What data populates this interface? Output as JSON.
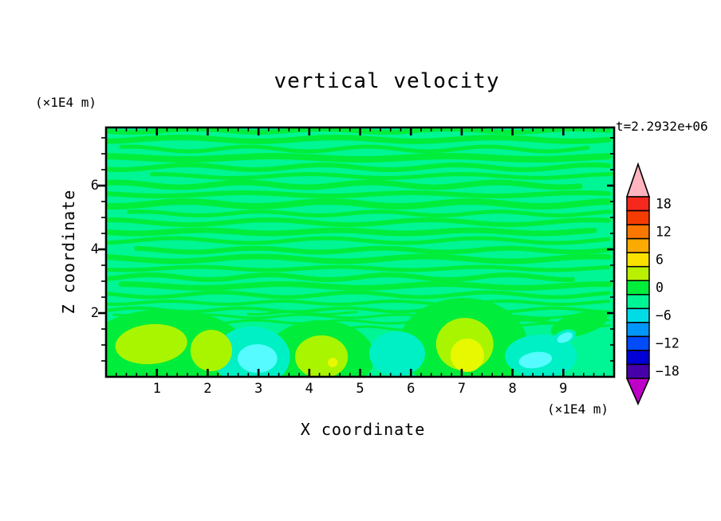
{
  "chart_data": {
    "type": "filled_contour",
    "title": "vertical velocity",
    "timestamp": "t=2.2932e+06",
    "xlabel": "X coordinate",
    "x_unit": "(×1E4 m)",
    "ylabel": "Z coordinate",
    "y_unit": "(×1E4 m)",
    "x_range": [
      0,
      10
    ],
    "z_range": [
      0,
      7.825
    ],
    "x_tick_values": [
      1,
      2,
      3,
      4,
      5,
      6,
      7,
      8,
      9
    ],
    "x_tick_labels": [
      "1",
      "2",
      "3",
      "4",
      "5",
      "6",
      "7",
      "8",
      "9"
    ],
    "x_minor_step": 0.2,
    "z_tick_values": [
      2,
      4,
      6
    ],
    "z_tick_labels_top_to_bottom": [
      "6",
      "4",
      "2"
    ],
    "z_minor_step": 0.5,
    "grid": false,
    "colorbar": {
      "contour_interval": 3,
      "band_centers": [
        18,
        15,
        12,
        9,
        6,
        3,
        0,
        -3,
        -6,
        -9,
        -12,
        -15,
        -18
      ],
      "band_colors": [
        "#f5281e",
        "#f53c00",
        "#fa7800",
        "#faaa00",
        "#fae100",
        "#b9f000",
        "#00ed3b",
        "#00f595",
        "#00dce6",
        "#0096fa",
        "#004bfa",
        "#0000d7",
        "#4600aa"
      ],
      "labels": [
        "18",
        "12",
        "6",
        "0",
        "−6",
        "−12",
        "−18"
      ],
      "labeled_band_indices": [
        0,
        2,
        4,
        6,
        8,
        10,
        12
      ],
      "over_color": "#ffb4be",
      "under_color": "#be00c8"
    },
    "field": {
      "description": "Near-zero wavy horizontal velocity bands above z≈1.7; stronger up/downdraft cells (yellow-green/yellow positive, turquoise/aqua negative) below z≈1.3",
      "background_color": "#00f595",
      "streak_color": "#00ed3b",
      "streaks": [
        [
          7.725,
          0,
          10,
          0.15,
          0.05,
          2.5,
          0.3
        ],
        [
          7.45,
          0,
          10,
          0.175,
          0.06,
          3.1,
          1.8
        ],
        [
          7.15,
          0.3,
          9.6,
          0.125,
          0.075,
          2.35,
          3.5
        ],
        [
          6.875,
          0,
          10,
          0.2,
          0.05,
          3.45,
          5.0
        ],
        [
          6.575,
          0,
          10,
          0.15,
          0.075,
          2.65,
          0.9
        ],
        [
          6.3,
          0.9,
          10,
          0.125,
          0.06,
          3.0,
          2.6
        ],
        [
          6.025,
          0,
          9.4,
          0.175,
          0.075,
          2.5,
          4.2
        ],
        [
          5.725,
          0,
          10,
          0.15,
          0.05,
          3.3,
          5.8
        ],
        [
          5.425,
          0,
          10,
          0.2,
          0.075,
          2.8,
          1.2
        ],
        [
          5.125,
          0.45,
          10,
          0.125,
          0.06,
          2.35,
          2.9
        ],
        [
          4.85,
          0,
          10,
          0.15,
          0.075,
          3.15,
          4.6
        ],
        [
          4.55,
          0,
          9.7,
          0.175,
          0.05,
          2.65,
          0.2
        ],
        [
          4.275,
          0,
          10,
          0.125,
          0.075,
          3.0,
          1.9
        ],
        [
          3.975,
          0.6,
          10,
          0.15,
          0.06,
          2.5,
          3.6
        ],
        [
          3.7,
          0,
          10,
          0.175,
          0.075,
          3.3,
          5.3
        ],
        [
          3.4,
          0,
          10,
          0.125,
          0.05,
          2.8,
          0.7
        ],
        [
          3.125,
          0,
          9.25,
          0.15,
          0.075,
          2.35,
          2.4
        ],
        [
          2.85,
          0.3,
          10,
          0.175,
          0.06,
          3.15,
          4.1
        ],
        [
          2.575,
          0,
          10,
          0.125,
          0.075,
          2.65,
          5.7
        ],
        [
          2.325,
          0,
          10,
          0.1,
          0.05,
          2.2,
          1.1
        ],
        [
          2.1,
          0,
          10,
          0.1,
          0.06,
          2.05,
          2.8
        ],
        [
          1.9,
          0.15,
          9.9,
          0.075,
          0.05,
          1.9,
          4.5
        ],
        [
          1.725,
          0,
          10,
          0.075,
          0.05,
          1.75,
          0.4
        ],
        [
          2.0,
          2.8,
          5.0,
          0.075,
          0.04,
          1.4,
          1.0
        ],
        [
          1.825,
          6.6,
          8.8,
          0.075,
          0.04,
          1.25,
          3.0
        ],
        [
          1.575,
          0,
          2.2,
          0.075,
          0.05,
          1.55,
          2.0
        ],
        [
          1.525,
          4.7,
          6.6,
          0.075,
          0.05,
          1.4,
          0.5
        ],
        [
          1.625,
          7.5,
          10,
          0.075,
          0.05,
          1.7,
          4.0
        ],
        [
          0.1,
          0,
          5.2,
          0.15,
          0.04,
          3.9,
          0.8
        ],
        [
          0.1,
          6.3,
          7.8,
          0.125,
          0.04,
          3.9,
          2.2
        ]
      ],
      "blobs": [
        {
          "color": "#00ed3b",
          "x": 1.18,
          "z": 0.875,
          "rx": 1.57,
          "rz": 1.25,
          "rot": 0
        },
        {
          "color": "#00ed3b",
          "x": 4.21,
          "z": 0.625,
          "rx": 1.07,
          "rz": 1.15,
          "rot": 0
        },
        {
          "color": "#00ed3b",
          "x": 7.03,
          "z": 1.025,
          "rx": 1.26,
          "rz": 1.45,
          "rot": 0
        },
        {
          "color": "#00ed3b",
          "x": 9.31,
          "z": 1.65,
          "rx": 0.57,
          "rz": 0.35,
          "rot": -15
        },
        {
          "color": "#00f0c6",
          "x": 2.87,
          "z": 0.625,
          "rx": 0.75,
          "rz": 0.95,
          "rot": 0
        },
        {
          "color": "#00f0c6",
          "x": 5.73,
          "z": 0.725,
          "rx": 0.55,
          "rz": 0.7,
          "rot": 0
        },
        {
          "color": "#00f0c6",
          "x": 8.56,
          "z": 0.65,
          "rx": 0.71,
          "rz": 0.675,
          "rot": 0
        },
        {
          "color": "#00f0c6",
          "x": 9.01,
          "z": 1.225,
          "rx": 0.25,
          "rz": 0.225,
          "rot": -25
        },
        {
          "color": "#55fbff",
          "x": 2.98,
          "z": 0.575,
          "rx": 0.39,
          "rz": 0.45,
          "rot": 0
        },
        {
          "color": "#55fbff",
          "x": 8.45,
          "z": 0.525,
          "rx": 0.33,
          "rz": 0.25,
          "rot": -8
        },
        {
          "color": "#55fbff",
          "x": 9.03,
          "z": 1.23,
          "rx": 0.16,
          "rz": 0.14,
          "rot": -25
        },
        {
          "color": "#a9f500",
          "x": 0.89,
          "z": 1.025,
          "rx": 0.71,
          "rz": 0.625,
          "rot": -5
        },
        {
          "color": "#a9f500",
          "x": 2.07,
          "z": 0.825,
          "rx": 0.41,
          "rz": 0.65,
          "rot": 0
        },
        {
          "color": "#a9f500",
          "x": 4.24,
          "z": 0.625,
          "rx": 0.52,
          "rz": 0.675,
          "rot": 0
        },
        {
          "color": "#a9f500",
          "x": 7.06,
          "z": 1.025,
          "rx": 0.565,
          "rz": 0.825,
          "rot": 0
        },
        {
          "color": "#e8f800",
          "x": 4.46,
          "z": 0.45,
          "rx": 0.095,
          "rz": 0.15,
          "rot": 0
        },
        {
          "color": "#e8f800",
          "x": 7.11,
          "z": 0.675,
          "rx": 0.33,
          "rz": 0.525,
          "rot": 0
        }
      ]
    }
  }
}
